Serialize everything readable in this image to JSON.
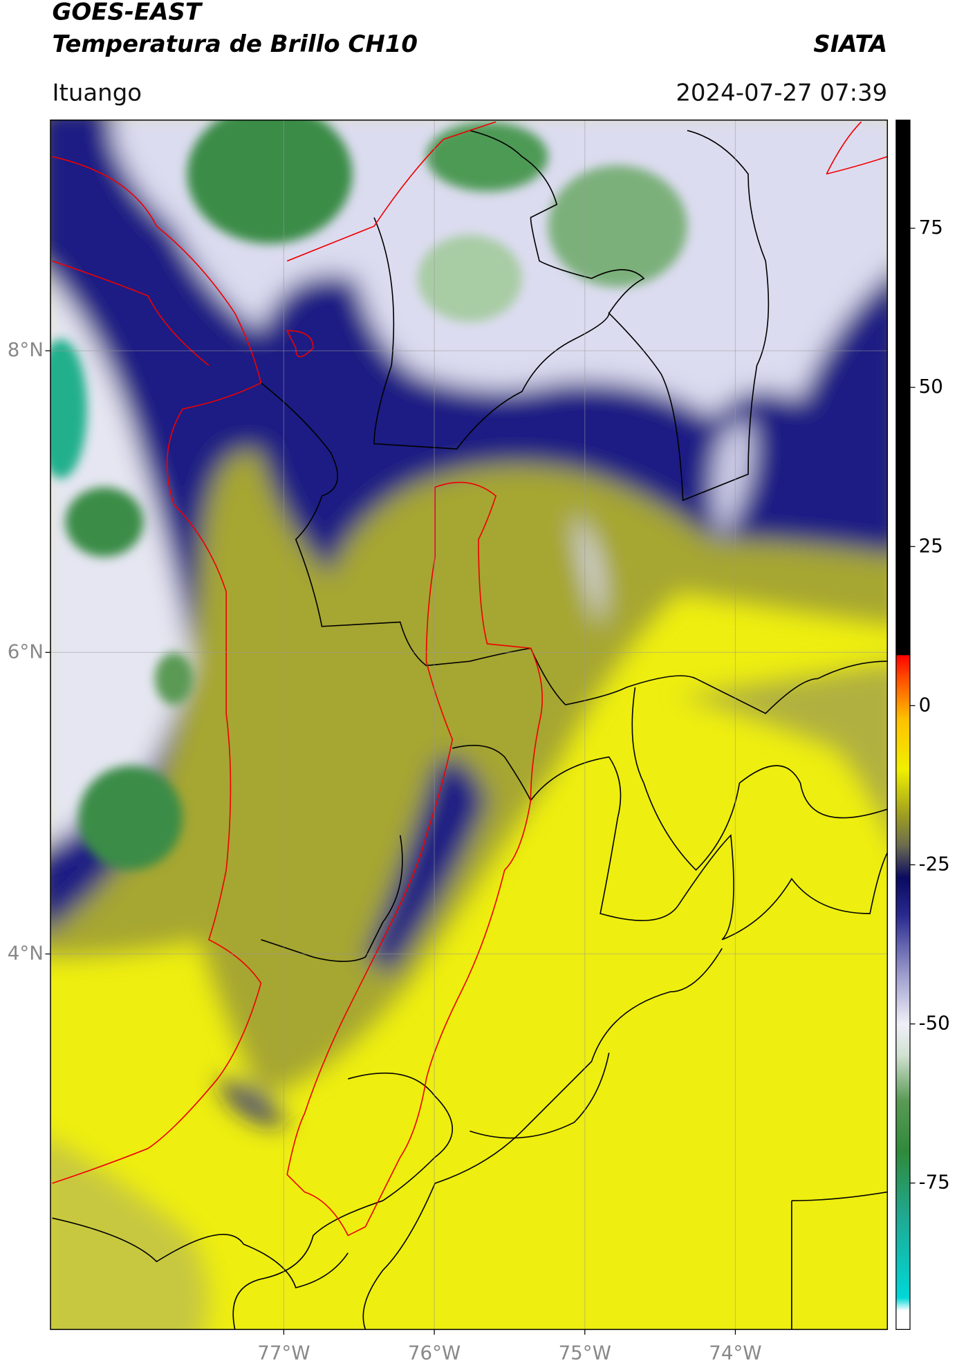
{
  "chart_data": {
    "type": "map",
    "title": "GOES-EAST",
    "subtitle": "Temperatura de Brillo CH10",
    "source": "SIATA",
    "location": "Ituango",
    "timestamp": "2024-07-27 07:39",
    "xlim": [
      -78.55,
      -72.99
    ],
    "ylim": [
      1.51,
      9.53
    ],
    "xticks": [
      {
        "value": -77,
        "label": "77°W"
      },
      {
        "value": -76,
        "label": "76°W"
      },
      {
        "value": -75,
        "label": "75°W"
      },
      {
        "value": -74,
        "label": "74°W"
      }
    ],
    "yticks": [
      {
        "value": 4,
        "label": "4°N"
      },
      {
        "value": 6,
        "label": "6°N"
      },
      {
        "value": 8,
        "label": "8°N"
      }
    ],
    "grid": true,
    "colorbar": {
      "lim": [
        -98,
        92
      ],
      "ticks": [
        -75,
        -50,
        -25,
        0,
        25,
        50,
        75
      ],
      "colorscale": [
        [
          -98,
          "#ffffff"
        ],
        [
          -95,
          "#ffffff"
        ],
        [
          -93,
          "#00d8d8"
        ],
        [
          -80,
          "#20a890"
        ],
        [
          -70,
          "#2f8a3a"
        ],
        [
          -62,
          "#5a9a55"
        ],
        [
          -55,
          "#d0e0d0"
        ],
        [
          -50,
          "#f0f0f8"
        ],
        [
          -42,
          "#9a9acc"
        ],
        [
          -33,
          "#2a2a90"
        ],
        [
          -27,
          "#0a0a60"
        ],
        [
          -22,
          "#6a6a50"
        ],
        [
          -17,
          "#a0a020"
        ],
        [
          -10,
          "#f0f000"
        ],
        [
          -2,
          "#ffc000"
        ],
        [
          5,
          "#ff4000"
        ],
        [
          8,
          "#ff0000"
        ],
        [
          8,
          "#000000"
        ],
        [
          92,
          "#000000"
        ]
      ]
    }
  }
}
